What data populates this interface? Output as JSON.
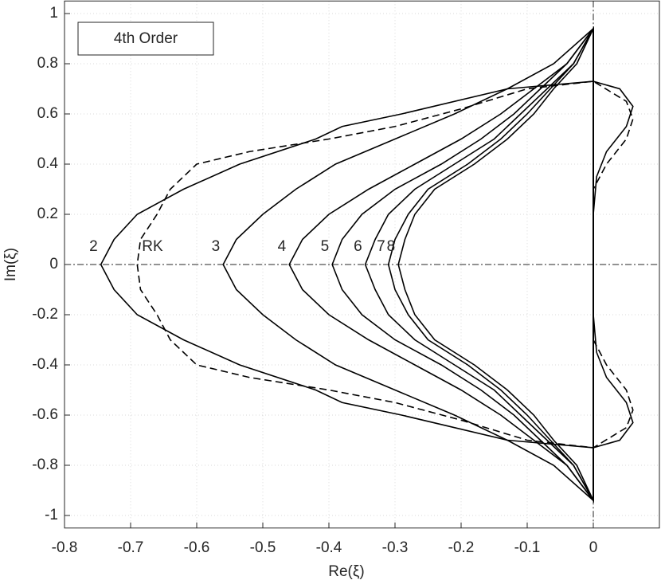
{
  "chart_data": {
    "type": "line",
    "annotation": "4th Order",
    "xlabel": "Re(ξ)",
    "ylabel": "Im(ξ)",
    "xlim": [
      -0.8,
      0.1
    ],
    "ylim": [
      -1.05,
      1.05
    ],
    "xticks": [
      -0.8,
      -0.7,
      -0.6,
      -0.5,
      -0.4,
      -0.3,
      -0.2,
      -0.1,
      0
    ],
    "yticks": [
      -1,
      -0.8,
      -0.6,
      -0.4,
      -0.2,
      0,
      0.2,
      0.4,
      0.6,
      0.8,
      1
    ],
    "grid": true,
    "series": [
      {
        "name": "2",
        "color": "#000000",
        "dashed": false,
        "x": [
          0,
          0.005,
          0.02,
          0.05,
          0.06,
          0.04,
          0,
          -0.13,
          -0.29,
          -0.38,
          -0.42,
          -0.535,
          -0.62,
          -0.69,
          -0.725,
          -0.745,
          -0.725,
          -0.69,
          -0.62,
          -0.535,
          -0.42,
          -0.38,
          -0.29,
          -0.13,
          0,
          0.04,
          0.06,
          0.05,
          0.02,
          0.005,
          0
        ],
        "values": [
          -0.2,
          -0.35,
          -0.45,
          -0.55,
          -0.63,
          -0.7,
          -0.73,
          -0.7,
          -0.6,
          -0.55,
          -0.5,
          -0.4,
          -0.3,
          -0.2,
          -0.1,
          0,
          0.1,
          0.2,
          0.3,
          0.4,
          0.5,
          0.55,
          0.6,
          0.7,
          0.73,
          0.7,
          0.63,
          0.55,
          0.45,
          0.35,
          0.2
        ]
      },
      {
        "name": "RK",
        "color": "#000000",
        "dashed": true,
        "x": [
          0,
          0.02,
          0.05,
          0.06,
          0.05,
          0,
          -0.1,
          -0.2,
          -0.3,
          -0.4,
          -0.52,
          -0.6,
          -0.64,
          -0.66,
          -0.685,
          -0.69,
          -0.685,
          -0.66,
          -0.64,
          -0.6,
          -0.52,
          -0.4,
          -0.3,
          -0.2,
          -0.1,
          0,
          0.05,
          0.06,
          0.05,
          0.02,
          0
        ],
        "values": [
          -0.3,
          -0.4,
          -0.5,
          -0.58,
          -0.65,
          -0.73,
          -0.7,
          -0.62,
          -0.55,
          -0.5,
          -0.45,
          -0.4,
          -0.3,
          -0.2,
          -0.1,
          0,
          0.1,
          0.2,
          0.3,
          0.4,
          0.45,
          0.5,
          0.55,
          0.62,
          0.7,
          0.73,
          0.65,
          0.58,
          0.5,
          0.4,
          0.3
        ]
      },
      {
        "name": "3",
        "color": "#000000",
        "dashed": false,
        "x": [
          0,
          -0.06,
          -0.13,
          -0.21,
          -0.3,
          -0.39,
          -0.45,
          -0.5,
          -0.54,
          -0.56,
          -0.54,
          -0.5,
          -0.45,
          -0.39,
          -0.3,
          -0.21,
          -0.13,
          -0.06,
          0
        ],
        "values": [
          -0.94,
          -0.8,
          -0.7,
          -0.6,
          -0.5,
          -0.4,
          -0.3,
          -0.2,
          -0.1,
          0,
          0.1,
          0.2,
          0.3,
          0.4,
          0.5,
          0.6,
          0.7,
          0.8,
          0.94
        ]
      },
      {
        "name": "4",
        "color": "#000000",
        "dashed": false,
        "x": [
          0,
          -0.04,
          -0.09,
          -0.14,
          -0.2,
          -0.27,
          -0.34,
          -0.4,
          -0.44,
          -0.46,
          -0.44,
          -0.4,
          -0.34,
          -0.27,
          -0.2,
          -0.14,
          -0.09,
          -0.04,
          0
        ],
        "values": [
          -0.94,
          -0.8,
          -0.7,
          -0.6,
          -0.5,
          -0.4,
          -0.3,
          -0.2,
          -0.1,
          0,
          0.1,
          0.2,
          0.3,
          0.4,
          0.5,
          0.6,
          0.7,
          0.8,
          0.94
        ]
      },
      {
        "name": "5",
        "color": "#000000",
        "dashed": false,
        "x": [
          0,
          -0.04,
          -0.08,
          -0.12,
          -0.17,
          -0.23,
          -0.3,
          -0.35,
          -0.38,
          -0.395,
          -0.38,
          -0.35,
          -0.3,
          -0.23,
          -0.17,
          -0.12,
          -0.08,
          -0.04,
          0
        ],
        "values": [
          -0.94,
          -0.8,
          -0.7,
          -0.6,
          -0.5,
          -0.4,
          -0.3,
          -0.2,
          -0.1,
          0,
          0.1,
          0.2,
          0.3,
          0.4,
          0.5,
          0.6,
          0.7,
          0.8,
          0.94
        ]
      },
      {
        "name": "6",
        "color": "#000000",
        "dashed": false,
        "x": [
          0,
          -0.03,
          -0.07,
          -0.11,
          -0.15,
          -0.21,
          -0.27,
          -0.31,
          -0.33,
          -0.345,
          -0.33,
          -0.31,
          -0.27,
          -0.21,
          -0.15,
          -0.11,
          -0.07,
          -0.03,
          0
        ],
        "values": [
          -0.94,
          -0.8,
          -0.7,
          -0.6,
          -0.5,
          -0.4,
          -0.3,
          -0.2,
          -0.1,
          0,
          0.1,
          0.2,
          0.3,
          0.4,
          0.5,
          0.6,
          0.7,
          0.8,
          0.94
        ]
      },
      {
        "name": "7",
        "color": "#000000",
        "dashed": false,
        "x": [
          0,
          -0.03,
          -0.065,
          -0.1,
          -0.14,
          -0.19,
          -0.25,
          -0.28,
          -0.3,
          -0.31,
          -0.3,
          -0.28,
          -0.25,
          -0.19,
          -0.14,
          -0.1,
          -0.065,
          -0.03,
          0
        ],
        "values": [
          -0.94,
          -0.8,
          -0.7,
          -0.6,
          -0.5,
          -0.4,
          -0.3,
          -0.2,
          -0.1,
          0,
          0.1,
          0.2,
          0.3,
          0.4,
          0.5,
          0.6,
          0.7,
          0.8,
          0.94
        ]
      },
      {
        "name": "8",
        "color": "#000000",
        "dashed": false,
        "x": [
          0,
          -0.025,
          -0.06,
          -0.09,
          -0.13,
          -0.18,
          -0.24,
          -0.27,
          -0.285,
          -0.295,
          -0.285,
          -0.27,
          -0.24,
          -0.18,
          -0.13,
          -0.09,
          -0.06,
          -0.025,
          0
        ],
        "values": [
          -0.94,
          -0.8,
          -0.7,
          -0.6,
          -0.5,
          -0.4,
          -0.3,
          -0.2,
          -0.1,
          0,
          0.1,
          0.2,
          0.3,
          0.4,
          0.5,
          0.6,
          0.7,
          0.8,
          0.94
        ]
      }
    ]
  }
}
